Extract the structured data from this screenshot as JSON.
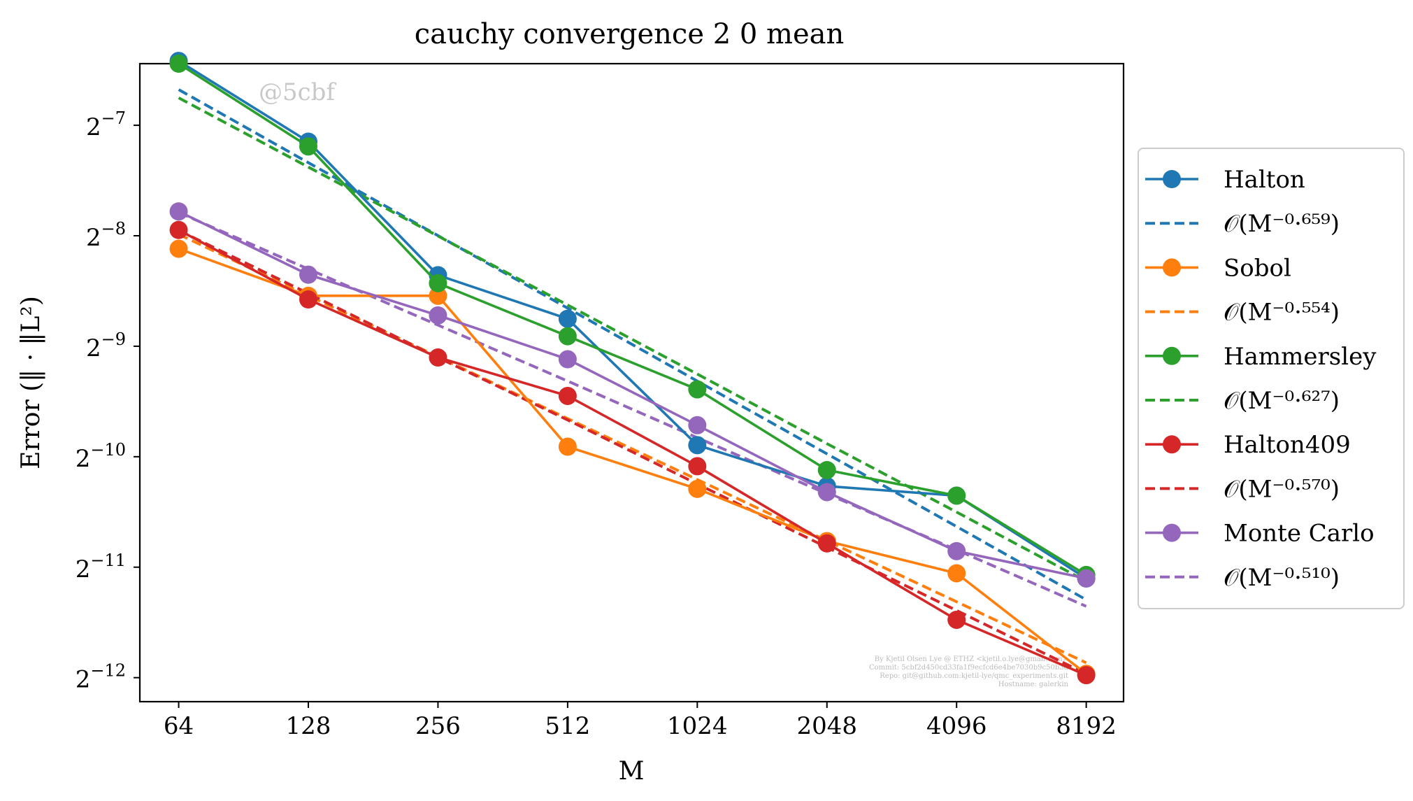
{
  "chart_data": {
    "type": "line",
    "title": "cauchy convergence 2 0 mean",
    "xlabel": "M",
    "ylabel": "Error (‖ · ‖L²)",
    "x_scale": "log2",
    "y_scale": "log2",
    "x": [
      64,
      128,
      256,
      512,
      1024,
      2048,
      4096,
      8192
    ],
    "x_tick_labels": [
      "64",
      "128",
      "256",
      "512",
      "1024",
      "2048",
      "4096",
      "8192"
    ],
    "y_ticks": [
      {
        "exp": "−7",
        "value": 0.0078125
      },
      {
        "exp": "−8",
        "value": 0.00390625
      },
      {
        "exp": "−9",
        "value": 0.001953125
      },
      {
        "exp": "−10",
        "value": 0.0009765625
      },
      {
        "exp": "−11",
        "value": 0.00048828125
      },
      {
        "exp": "−12",
        "value": 0.000244140625
      }
    ],
    "y_tick_base": "2",
    "xlim": [
      52,
      10000
    ],
    "ylim": [
      0.00021,
      0.0115
    ],
    "grid": false,
    "legend_position": "right-outside",
    "watermark": "@5cbf",
    "footer_lines": [
      "By Kjetil Olsen Lye @ ETHZ <kjetil.o.lye@gmail.com>",
      "Commit: 5cbf2d450cd33fa1f9ecfcd6e4be7030b9c50b3d",
      "Repo: git@github.com:kjetil-lye/qmc_experiments.git",
      "Hostname: galerkin"
    ],
    "series": [
      {
        "name": "Halton",
        "color": "#1f77b4",
        "style": "solid-marker",
        "values": [
          0.0117,
          0.00705,
          0.00305,
          0.00232,
          0.00105,
          0.000812,
          0.000765,
          0.000455
        ]
      },
      {
        "name": "𝒪(M⁻⁰·⁶⁵⁹)",
        "color": "#1f77b4",
        "style": "dashed",
        "values": [
          0.00977,
          0.00618,
          0.00391,
          0.00248,
          0.00157,
          0.000994,
          0.00063,
          0.000398
        ]
      },
      {
        "name": "Sobol",
        "color": "#ff7f0e",
        "style": "solid-marker",
        "values": [
          0.0036,
          0.00268,
          0.00268,
          0.00104,
          0.000798,
          0.000575,
          0.00047,
          0.00025
        ]
      },
      {
        "name": "𝒪(M⁻⁰·⁵⁵⁴)",
        "color": "#ff7f0e",
        "style": "dashed",
        "values": [
          0.00394,
          0.00268,
          0.00183,
          0.00124,
          0.000846,
          0.000576,
          0.000393,
          0.000268
        ]
      },
      {
        "name": "Hammersley",
        "color": "#2ca02c",
        "style": "solid-marker",
        "values": [
          0.0115,
          0.00684,
          0.0029,
          0.00208,
          0.00149,
          0.000898,
          0.000765,
          0.000465
        ]
      },
      {
        "name": "𝒪(M⁻⁰·⁶²⁷)",
        "color": "#2ca02c",
        "style": "dashed",
        "values": [
          0.00928,
          0.00601,
          0.0039,
          0.00253,
          0.00164,
          0.00106,
          0.00069,
          0.000447
        ]
      },
      {
        "name": "Halton409",
        "color": "#d62728",
        "style": "solid-marker",
        "values": [
          0.00405,
          0.00262,
          0.00182,
          0.00143,
          0.00092,
          0.000567,
          0.000351,
          0.000248
        ]
      },
      {
        "name": "𝒪(M⁻⁰·⁵⁷⁰)",
        "color": "#d62728",
        "style": "dashed",
        "values": [
          0.00404,
          0.00272,
          0.00182,
          0.00123,
          0.000823,
          0.000553,
          0.000372,
          0.00025
        ]
      },
      {
        "name": "Monte Carlo",
        "color": "#9467bd",
        "style": "solid-marker",
        "values": [
          0.00455,
          0.00306,
          0.00237,
          0.0018,
          0.00119,
          0.000782,
          0.00054,
          0.000455
        ]
      },
      {
        "name": "𝒪(M⁻⁰·⁵¹⁰)",
        "color": "#9467bd",
        "style": "dashed",
        "values": [
          0.00452,
          0.00317,
          0.00223,
          0.00157,
          0.0011,
          0.000774,
          0.000544,
          0.000382
        ]
      }
    ]
  }
}
